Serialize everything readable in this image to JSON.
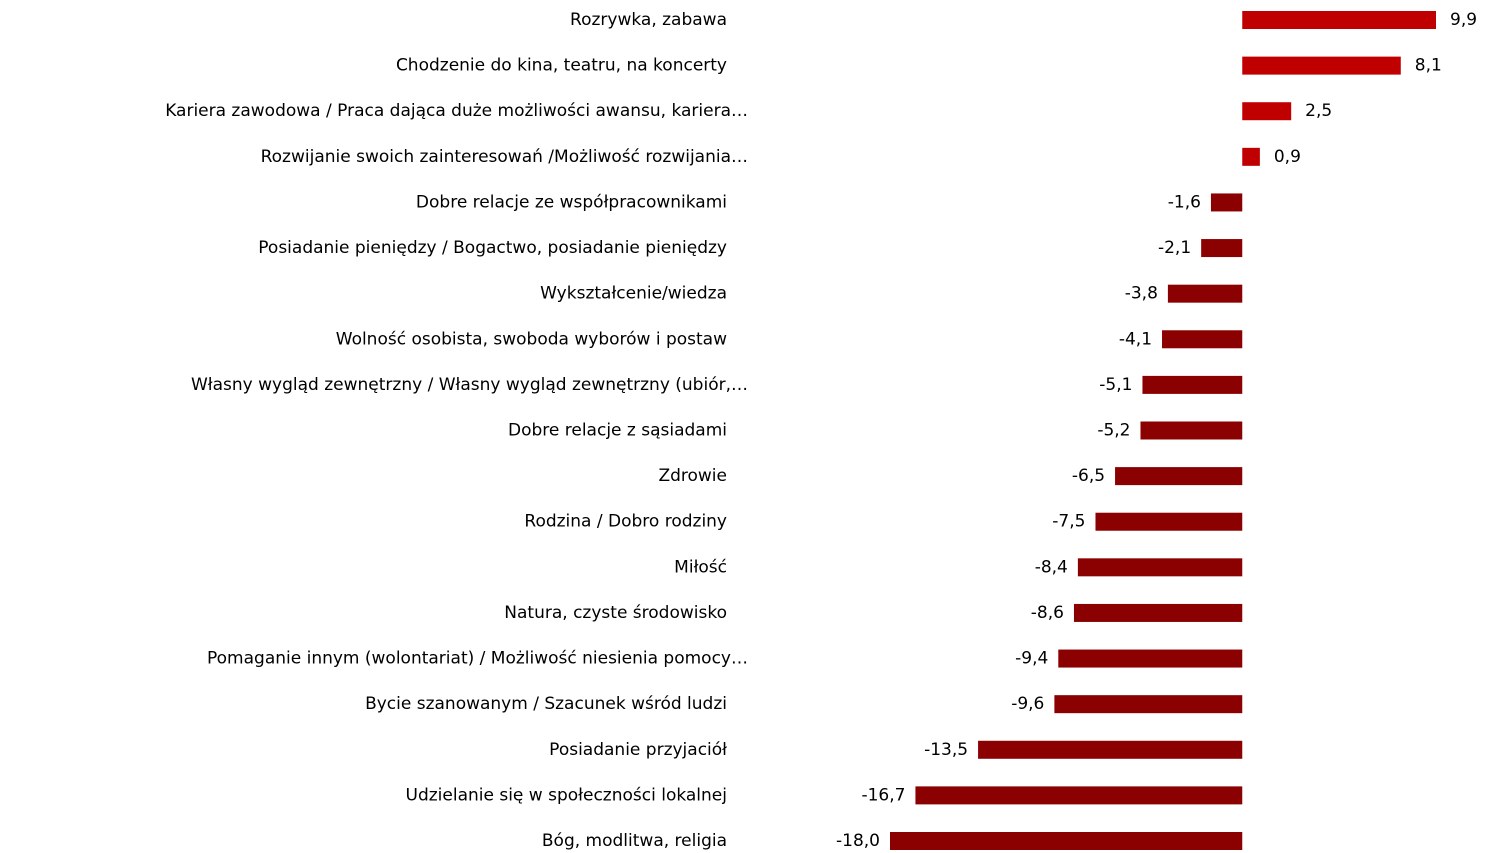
{
  "chart_data": {
    "type": "barh",
    "categories": [
      "Rozrywka, zabawa",
      "Chodzenie do kina, teatru, na koncerty",
      "Kariera zawodowa / Praca dająca duże możliwości awansu, kariera…",
      "Rozwijanie swoich zainteresowań /Możliwość rozwijania…",
      "Dobre relacje ze współpracownikami",
      "Posiadanie pieniędzy / Bogactwo, posiadanie pieniędzy",
      "Wykształcenie/wiedza",
      "Wolność osobista, swoboda wyborów i postaw",
      "Własny wygląd zewnętrzny / Własny wygląd zewnętrzny (ubiór,…",
      "Dobre relacje z sąsiadami",
      "Zdrowie",
      "Rodzina / Dobro rodziny",
      "Miłość",
      "Natura, czyste środowisko",
      "Pomaganie innym (wolontariat) / Możliwość niesienia pomocy…",
      "Bycie szanowanym / Szacunek wśród ludzi",
      "Posiadanie przyjaciół",
      "Udzielanie się w społeczności lokalnej",
      "Bóg, modlitwa, religia"
    ],
    "values": [
      9.9,
      8.1,
      2.5,
      0.9,
      -1.6,
      -2.1,
      -3.8,
      -4.1,
      -5.1,
      -5.2,
      -6.5,
      -7.5,
      -8.4,
      -8.6,
      -9.4,
      -9.6,
      -13.5,
      -16.7,
      -18.0
    ],
    "value_labels": [
      "9,9",
      "8,1",
      "2,5",
      "0,9",
      "-1,6",
      "-2,1",
      "-3,8",
      "-4,1",
      "-5,1",
      "-5,2",
      "-6,5",
      "-7,5",
      "-8,4",
      "-8,6",
      "-9,4",
      "-9,6",
      "-13,5",
      "-16,7",
      "-18,0"
    ],
    "color": "#c00000",
    "negative_color": "#8b0000"
  }
}
